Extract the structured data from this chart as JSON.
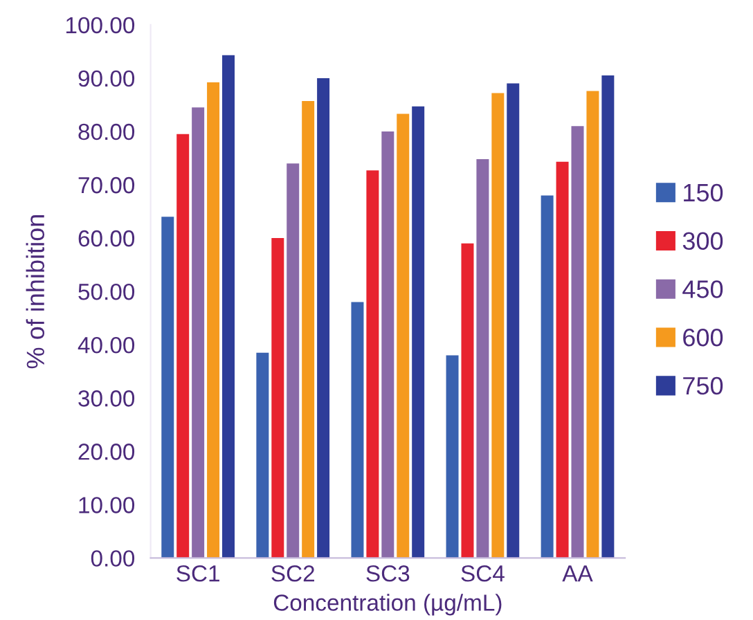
{
  "chart_data": {
    "type": "bar",
    "xlabel": "Concentration (µg/mL)",
    "ylabel": "% of inhibition",
    "categories": [
      "SC1",
      "SC2",
      "SC3",
      "SC4",
      "AA"
    ],
    "series": [
      {
        "name": "150",
        "color": "#3a62b0",
        "values": [
          64,
          38.5,
          48,
          38,
          68
        ]
      },
      {
        "name": "300",
        "color": "#e8232f",
        "values": [
          79.5,
          60,
          72.7,
          59,
          74.3
        ]
      },
      {
        "name": "450",
        "color": "#8a6aa8",
        "values": [
          84.5,
          74,
          80,
          74.8,
          81
        ]
      },
      {
        "name": "600",
        "color": "#f59a1e",
        "values": [
          89.2,
          85.7,
          83.3,
          87.2,
          87.6
        ]
      },
      {
        "name": "750",
        "color": "#2e3d99",
        "values": [
          94.3,
          90,
          84.7,
          89,
          90.5
        ]
      }
    ],
    "ylim": [
      0,
      100
    ],
    "yticks": [
      {
        "value": 0,
        "label": "0.00"
      },
      {
        "value": 10,
        "label": "10.00"
      },
      {
        "value": 20,
        "label": "20.00"
      },
      {
        "value": 30,
        "label": "30.00"
      },
      {
        "value": 40,
        "label": "40.00"
      },
      {
        "value": 50,
        "label": "50.00"
      },
      {
        "value": 60,
        "label": "60.00"
      },
      {
        "value": 70,
        "label": "70.00"
      },
      {
        "value": 80,
        "label": "80.00"
      },
      {
        "value": 90,
        "label": "90.00"
      },
      {
        "value": 100,
        "label": "100.00"
      }
    ],
    "grid": false,
    "legend": "right"
  }
}
